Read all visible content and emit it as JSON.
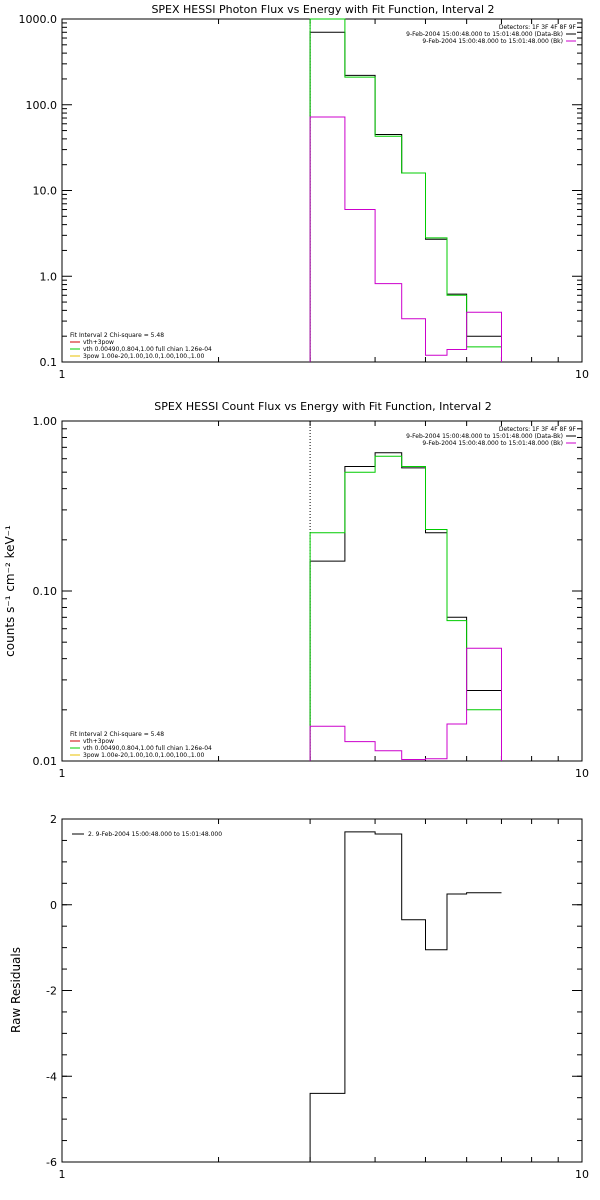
{
  "chart_data": [
    {
      "type": "line",
      "title": "SPEX HESSI Photon Flux vs Energy with Fit Function, Interval 2",
      "xlabel": "",
      "ylabel": "",
      "xscale": "log",
      "yscale": "log",
      "xlim": [
        1,
        10
      ],
      "ylim": [
        0.1,
        1000
      ],
      "xtick_labels": [
        {
          "v": 1,
          "t": "1"
        },
        {
          "v": 10,
          "t": "10"
        }
      ],
      "ytick_labels": [
        {
          "v": 0.1,
          "t": "0.1"
        },
        {
          "v": 1,
          "t": "1.0"
        },
        {
          "v": 10,
          "t": "10.0"
        },
        {
          "v": 100,
          "t": "100.0"
        },
        {
          "v": 1000,
          "t": "1000.0"
        }
      ],
      "vline_x": 3,
      "legend_topright": [
        {
          "text": "Detectors: 1F 3F 4F 8F 9F",
          "color": "#000000",
          "line": false
        },
        {
          "text": "9-Feb-2004 15:00:48.000 to 15:01:48.000 (Data-Bk)",
          "color": "#000000",
          "line": true
        },
        {
          "text": "9-Feb-2004 15:00:48.000 to 15:01:48.000 (Bk)",
          "color": "#cc00cc",
          "line": true
        }
      ],
      "legend_bottomleft": [
        {
          "text": "Fit Interval 2   Chi-square = 5.48",
          "color": "#000000",
          "line": false
        },
        {
          "text": "vth+3pow",
          "color": "#cc0000",
          "line": true
        },
        {
          "text": "vth 0.00490,0.804,1.00  full chian 1.26e-04",
          "color": "#00cc00",
          "line": true
        },
        {
          "text": "3pow 1.00e-20,1.00,10.0,1.00,100.,1.00",
          "color": "#e8c000",
          "line": true
        }
      ],
      "edges": [
        3.0,
        3.5,
        4.0,
        4.5,
        5.0,
        5.5,
        6.0,
        7.0,
        8.0,
        9.0,
        10.0
      ],
      "series": [
        {
          "name": "9-Feb-2004 15:00:48.000 to 15:01:48.000 (Data-Bk)",
          "color": "#000000",
          "values": [
            700,
            220,
            45,
            16,
            2.7,
            0.62,
            0.2
          ]
        },
        {
          "name": "vth 0.00490,0.804,1.00  full chian 1.26e-04",
          "color": "#00cc00",
          "values": [
            1000,
            210,
            43,
            16,
            2.8,
            0.6,
            0.15
          ]
        },
        {
          "name": "9-Feb-2004 15:00:48.000 to 15:01:48.000 (Bk)",
          "color": "#cc00cc",
          "values": [
            72,
            6,
            0.82,
            0.32,
            0.12,
            0.14,
            0.38
          ]
        }
      ]
    },
    {
      "type": "line",
      "title": "SPEX HESSI Count Flux vs Energy with Fit Function, Interval 2",
      "xlabel": "",
      "ylabel": "counts s⁻¹ cm⁻² keV⁻¹",
      "xscale": "log",
      "yscale": "log",
      "xlim": [
        1,
        10
      ],
      "ylim": [
        0.01,
        1.0
      ],
      "xtick_labels": [
        {
          "v": 1,
          "t": "1"
        },
        {
          "v": 10,
          "t": "10"
        }
      ],
      "ytick_labels": [
        {
          "v": 0.01,
          "t": "0.01"
        },
        {
          "v": 0.1,
          "t": "0.10"
        },
        {
          "v": 1,
          "t": "1.00"
        }
      ],
      "vline_x": 3,
      "legend_topright": [
        {
          "text": "Detectors: 1F 3F 4F 8F 9F",
          "color": "#000000",
          "line": false
        },
        {
          "text": "9-Feb-2004 15:00:48.000 to 15:01:48.000 (Data-Bk)",
          "color": "#000000",
          "line": true
        },
        {
          "text": "9-Feb-2004 15:00:48.000 to 15:01:48.000 (Bk)",
          "color": "#cc00cc",
          "line": true
        }
      ],
      "legend_bottomleft": [
        {
          "text": "Fit Interval 2   Chi-square = 5.48",
          "color": "#000000",
          "line": false
        },
        {
          "text": "vth+3pow",
          "color": "#cc0000",
          "line": true
        },
        {
          "text": "vth 0.00490,0.804,1.00  full chian 1.26e-04",
          "color": "#00cc00",
          "line": true
        },
        {
          "text": "3pow 1.00e-20,1.00,10.0,1.00,100.,1.00",
          "color": "#e8c000",
          "line": true
        }
      ],
      "edges": [
        3.0,
        3.5,
        4.0,
        4.5,
        5.0,
        5.5,
        6.0,
        7.0,
        8.0,
        9.0,
        10.0
      ],
      "series": [
        {
          "name": "9-Feb-2004 15:00:48.000 to 15:01:48.000 (Data-Bk)",
          "color": "#000000",
          "values": [
            0.15,
            0.54,
            0.65,
            0.53,
            0.22,
            0.07,
            0.026
          ]
        },
        {
          "name": "vth 0.00490,0.804,1.00  full chian 1.26e-04",
          "color": "#00cc00",
          "values": [
            0.22,
            0.5,
            0.62,
            0.54,
            0.23,
            0.067,
            0.02
          ]
        },
        {
          "name": "9-Feb-2004 15:00:48.000 to 15:01:48.000 (Bk)",
          "color": "#cc00cc",
          "values": [
            0.016,
            0.013,
            0.0115,
            0.0102,
            0.0103,
            0.0165,
            0.046
          ]
        }
      ]
    },
    {
      "type": "line",
      "title": "",
      "xlabel": "",
      "ylabel": "Raw Residuals",
      "xscale": "log",
      "yscale": "linear",
      "xlim": [
        1,
        10
      ],
      "ylim": [
        -6,
        2
      ],
      "xtick_labels": [
        {
          "v": 1,
          "t": "1"
        },
        {
          "v": 10,
          "t": "10"
        }
      ],
      "ytick_labels": [
        {
          "v": -6,
          "t": "-6"
        },
        {
          "v": -4,
          "t": "-4"
        },
        {
          "v": -2,
          "t": "-2"
        },
        {
          "v": 0,
          "t": "0"
        },
        {
          "v": 2,
          "t": "2"
        }
      ],
      "vline_x": null,
      "legend_topright": [],
      "legend_bottomleft": [],
      "legend_topleft": [
        {
          "text": "2.  9-Feb-2004 15:00:48.000 to 15:01:48.000",
          "color": "#000000",
          "line": true
        }
      ],
      "edges": [
        3.0,
        3.5,
        4.0,
        4.5,
        5.0,
        5.5,
        6.0,
        7.0,
        8.0,
        9.0,
        10.0
      ],
      "series": [
        {
          "name": "2.  9-Feb-2004 15:00:48.000 to 15:01:48.000",
          "color": "#000000",
          "values": [
            -4.4,
            1.7,
            1.65,
            -0.35,
            -1.05,
            0.25,
            0.28
          ]
        }
      ]
    }
  ]
}
